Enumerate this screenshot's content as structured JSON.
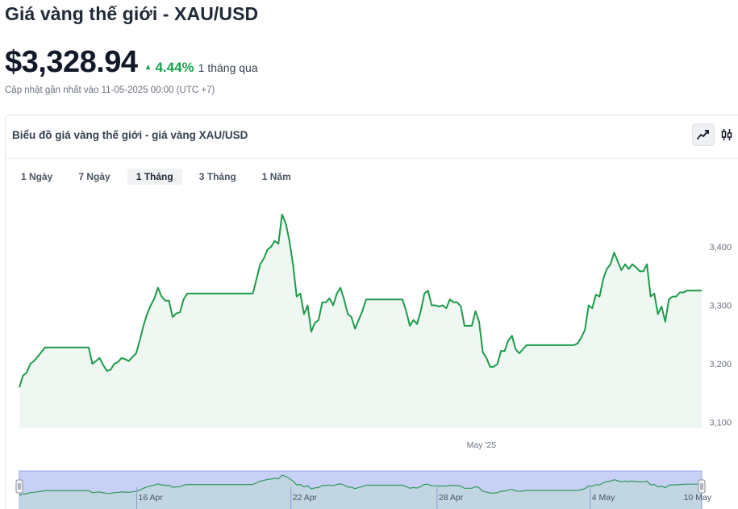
{
  "page": {
    "title": "Giá vàng thế giới - XAU/USD"
  },
  "price": {
    "value": "$3,328.94",
    "change_percent": "4.44%",
    "change_period": "1 tháng qua",
    "direction": "up",
    "updated": "Cập nhật gần nhất vào 11-05-2025 00:00 (UTC +7)"
  },
  "chart_card": {
    "title": "Biểu đồ giá vàng thế giới - giá vàng XAU/USD",
    "chart_types": [
      {
        "name": "line",
        "icon": "line-chart-icon",
        "active": true
      },
      {
        "name": "candlestick",
        "icon": "candlestick-icon",
        "active": false
      }
    ],
    "ranges": [
      {
        "label": "1 Ngày",
        "active": false
      },
      {
        "label": "7 Ngày",
        "active": false
      },
      {
        "label": "1 Tháng",
        "active": true
      },
      {
        "label": "3 Tháng",
        "active": false
      },
      {
        "label": "1 Năm",
        "active": false
      }
    ]
  },
  "colors": {
    "accent_green": "#16a34a",
    "line": "#1e9a4b",
    "area_fill": "#eef7f1",
    "navigator_fill": "#c9d0f5",
    "navigator_line": "#2f9a5c"
  },
  "chart_data": {
    "type": "area",
    "series": [
      {
        "values": [
          3160,
          3180,
          3185,
          3200,
          3205,
          3212,
          3220,
          3228,
          3228,
          3228,
          3228,
          3228,
          3228,
          3228,
          3228,
          3228,
          3228,
          3228,
          3228,
          3228,
          3200,
          3205,
          3210,
          3198,
          3188,
          3190,
          3200,
          3203,
          3210,
          3208,
          3205,
          3212,
          3218,
          3240,
          3265,
          3285,
          3300,
          3312,
          3330,
          3315,
          3308,
          3308,
          3280,
          3286,
          3288,
          3310,
          3320,
          3320,
          3320,
          3320,
          3320,
          3320,
          3320,
          3320,
          3320,
          3320,
          3320,
          3320,
          3320,
          3320,
          3320,
          3320,
          3320,
          3320,
          3320,
          3345,
          3370,
          3380,
          3395,
          3400,
          3410,
          3405,
          3455,
          3440,
          3410,
          3370,
          3315,
          3320,
          3285,
          3300,
          3255,
          3270,
          3275,
          3305,
          3305,
          3312,
          3300,
          3320,
          3330,
          3310,
          3285,
          3280,
          3260,
          3275,
          3290,
          3310,
          3310,
          3310,
          3310,
          3310,
          3310,
          3310,
          3310,
          3310,
          3310,
          3310,
          3290,
          3265,
          3275,
          3268,
          3290,
          3320,
          3325,
          3300,
          3300,
          3298,
          3300,
          3295,
          3310,
          3305,
          3305,
          3298,
          3265,
          3265,
          3265,
          3290,
          3272,
          3220,
          3210,
          3195,
          3195,
          3200,
          3222,
          3222,
          3240,
          3248,
          3225,
          3218,
          3225,
          3232,
          3232,
          3232,
          3232,
          3232,
          3232,
          3232,
          3232,
          3232,
          3232,
          3232,
          3232,
          3232,
          3232,
          3235,
          3245,
          3258,
          3300,
          3295,
          3318,
          3315,
          3345,
          3362,
          3370,
          3390,
          3375,
          3360,
          3370,
          3362,
          3370,
          3365,
          3358,
          3358,
          3370,
          3315,
          3320,
          3285,
          3298,
          3272,
          3310,
          3315,
          3315,
          3322,
          3322,
          3325,
          3325,
          3325,
          3325,
          3325
        ]
      }
    ],
    "y_ticks": [
      "3,400",
      "3,300",
      "3,200",
      "3,100"
    ],
    "y_tick_values": [
      3400,
      3300,
      3200,
      3100
    ],
    "ylim": [
      3090,
      3470
    ],
    "x_labels": [
      "May '25"
    ],
    "x_label_positions": [
      0.6772
    ],
    "navigator": {
      "labels": [
        "16 Apr",
        "22 Apr",
        "28 Apr",
        "4 May",
        "10 May"
      ],
      "label_positions": [
        0.172,
        0.398,
        0.6122,
        0.8367,
        1.0
      ],
      "ylim": [
        3090,
        3470
      ]
    },
    "grid": false,
    "legend": "none"
  }
}
